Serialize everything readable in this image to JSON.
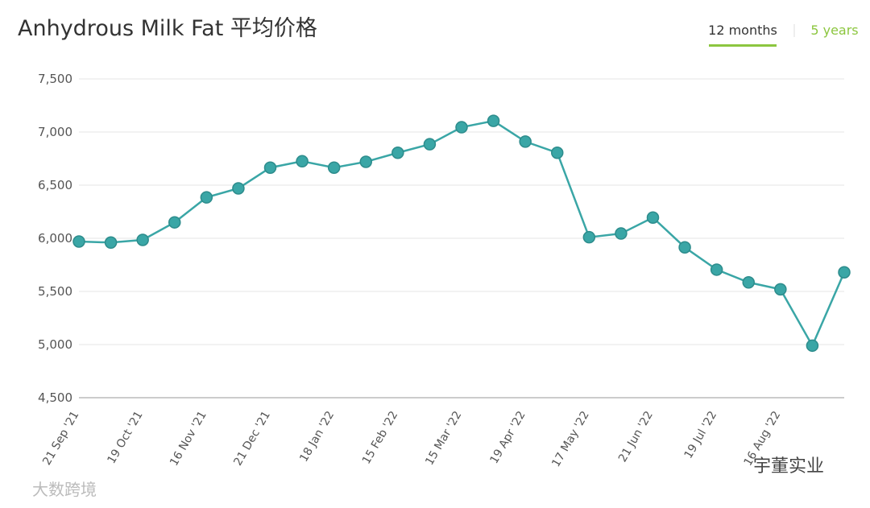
{
  "chart_data": {
    "type": "line",
    "title": "Anhydrous Milk Fat 平均价格",
    "toggles": [
      "12 months",
      "5 years"
    ],
    "watermarks": [
      "大数跨境",
      "宇董实业"
    ],
    "categories": [
      "21 Sep '21",
      null,
      "19 Oct '21",
      null,
      "16 Nov '21",
      null,
      "21 Dec '21",
      null,
      "18 Jan '22",
      null,
      "15 Feb '22",
      null,
      "15 Mar '22",
      null,
      "19 Apr '22",
      null,
      "17 May '22",
      null,
      "21 Jun '22",
      null,
      "19 Jul '22",
      null,
      "16 Aug '22",
      null,
      null
    ],
    "series": [
      {
        "name": "Anhydrous Milk Fat",
        "color": "#3aa6a6",
        "values": [
          5970,
          5960,
          5985,
          6150,
          6385,
          6470,
          6665,
          6725,
          6665,
          6720,
          6805,
          6885,
          7045,
          7105,
          6910,
          6805,
          6010,
          6045,
          6195,
          5915,
          5705,
          5585,
          5520,
          4990,
          5680
        ]
      }
    ],
    "ylim": [
      4500,
      7500
    ],
    "yticks": [
      {
        "value": 4500,
        "label": "4,500"
      },
      {
        "value": 5000,
        "label": "5,000"
      },
      {
        "value": 5500,
        "label": "5,500"
      },
      {
        "value": 6000,
        "label": "6,000"
      },
      {
        "value": 6500,
        "label": "6,500"
      },
      {
        "value": 7000,
        "label": "7,000"
      },
      {
        "value": 7500,
        "label": "7,500"
      }
    ],
    "grid": true
  }
}
